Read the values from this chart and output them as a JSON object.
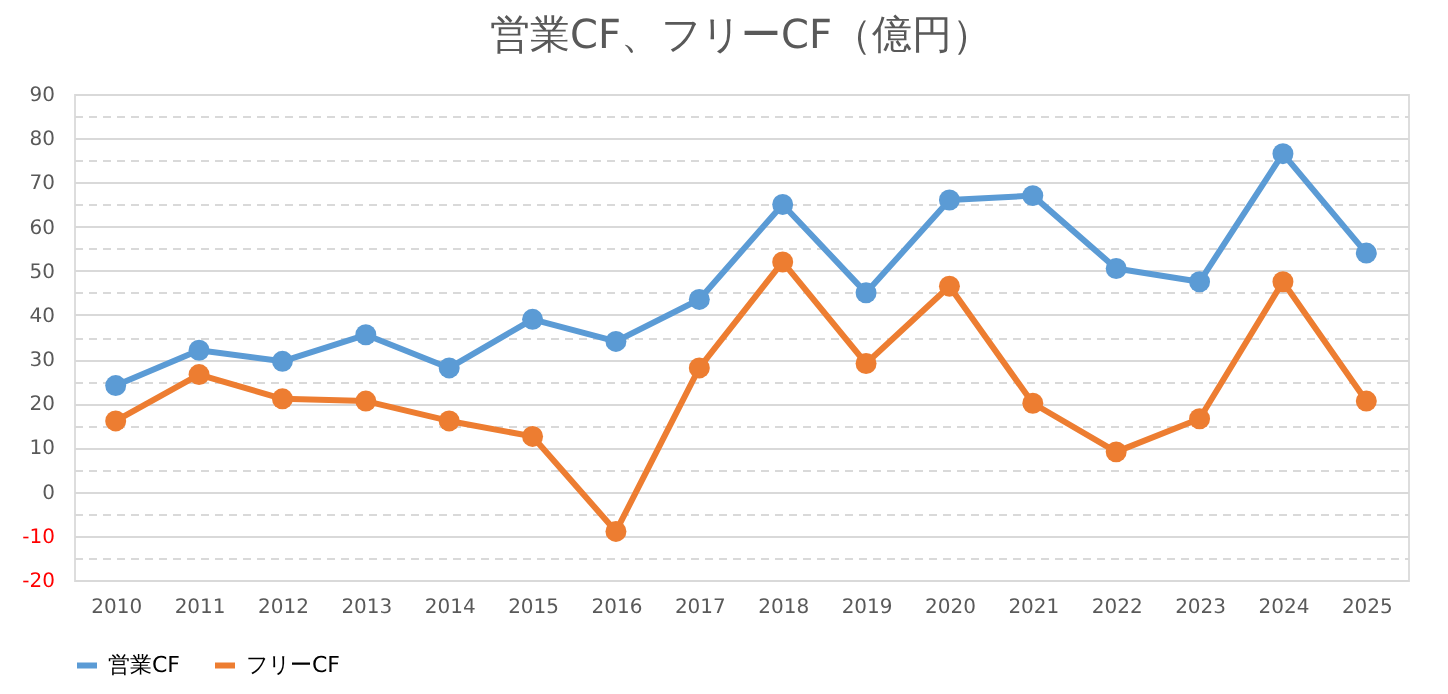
{
  "chart_data": {
    "type": "line",
    "title": "営業CF、フリーCF（億円）",
    "categories": [
      "2010",
      "2011",
      "2012",
      "2013",
      "2014",
      "2015",
      "2016",
      "2017",
      "2018",
      "2019",
      "2020",
      "2021",
      "2022",
      "2023",
      "2024",
      "2025"
    ],
    "series": [
      {
        "name": "営業CF",
        "color": "#5b9bd5",
        "values": [
          24,
          32,
          29.5,
          35.5,
          28,
          39,
          34,
          43.5,
          65,
          45,
          66,
          67,
          50.5,
          47.5,
          76.5,
          54
        ]
      },
      {
        "name": "フリーCF",
        "color": "#ed7d31",
        "values": [
          16,
          26.5,
          21,
          20.5,
          16,
          12.5,
          -9,
          28,
          52,
          29,
          46.5,
          20,
          9,
          16.5,
          47.5,
          20.5
        ]
      }
    ],
    "ylim": [
      -20,
      90
    ],
    "yticks": [
      -20,
      {
        "value": -15,
        "label": null
      },
      -10,
      {
        "value": -5,
        "label": null
      },
      0,
      {
        "value": 5,
        "label": null
      },
      10,
      {
        "value": 15,
        "label": null
      },
      20,
      {
        "value": 25,
        "label": null
      },
      30,
      {
        "value": 35,
        "label": null
      },
      40,
      {
        "value": 45,
        "label": null
      },
      50,
      {
        "value": 55,
        "label": null
      },
      60,
      {
        "value": 65,
        "label": null
      },
      70,
      {
        "value": 75,
        "label": null
      },
      80,
      {
        "value": 85,
        "label": null
      },
      90
    ],
    "grid": "y",
    "legend": "bottom",
    "marker": "circle",
    "line_style": "solid"
  }
}
